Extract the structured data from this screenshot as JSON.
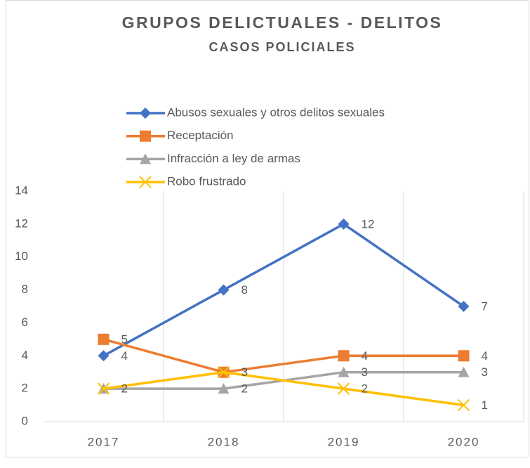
{
  "chart_data": {
    "type": "line",
    "title": "GRUPOS DELICTUALES - DELITOS",
    "subtitle": "CASOS POLICIALES",
    "categories": [
      "2017",
      "2018",
      "2019",
      "2020"
    ],
    "series": [
      {
        "name": "Abusos sexuales y otros delitos sexuales",
        "color": "#4472c4",
        "marker": "diamond",
        "values": [
          4,
          8,
          12,
          7
        ]
      },
      {
        "name": "Receptación",
        "color": "#ed7d31",
        "marker": "square",
        "values": [
          5,
          3,
          4,
          4
        ]
      },
      {
        "name": "Infracción a ley de armas",
        "color": "#a5a5a5",
        "marker": "triangle",
        "values": [
          2,
          2,
          3,
          3
        ]
      },
      {
        "name": "Robo frustrado",
        "color": "#ffc000",
        "marker": "x",
        "values": [
          2,
          3,
          2,
          1
        ]
      }
    ],
    "ylim": [
      0,
      14
    ],
    "yticks": [
      0,
      2,
      4,
      6,
      8,
      10,
      12,
      14
    ],
    "grid": true,
    "legend": "top"
  }
}
